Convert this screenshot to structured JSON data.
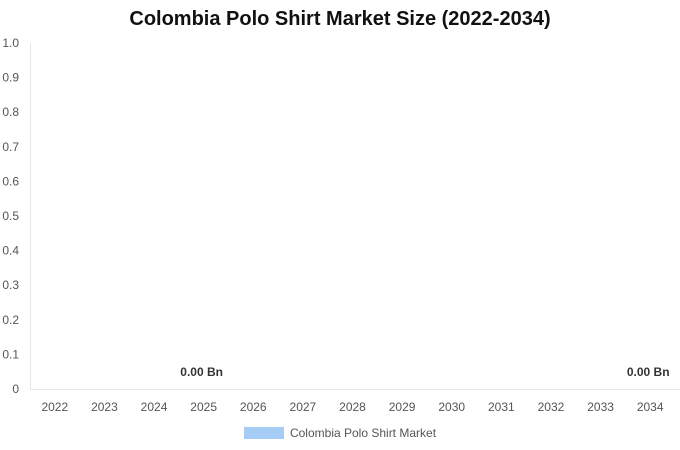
{
  "chart_data": {
    "type": "bar",
    "title": "Colombia Polo Shirt Market Size (2022-2034)",
    "categories": [
      "2022",
      "2023",
      "2024",
      "2025",
      "2026",
      "2027",
      "2028",
      "2029",
      "2030",
      "2031",
      "2032",
      "2033",
      "2034"
    ],
    "series": [
      {
        "name": "Colombia Polo Shirt Market",
        "color": "#a5cdf5",
        "values": [
          0,
          0,
          0,
          0,
          0,
          0,
          0,
          0,
          0,
          0,
          0,
          0,
          0
        ]
      }
    ],
    "y_ticks": [
      "0",
      "0.1",
      "0.2",
      "0.3",
      "0.4",
      "0.5",
      "0.6",
      "0.7",
      "0.8",
      "0.9",
      "1.0"
    ],
    "ylim": [
      0,
      1.0
    ],
    "data_labels": [
      {
        "category": "2025",
        "text": "0.00 Bn"
      },
      {
        "category": "2034",
        "text": "0.00 Bn"
      }
    ],
    "legend_position": "bottom",
    "grid": false
  }
}
